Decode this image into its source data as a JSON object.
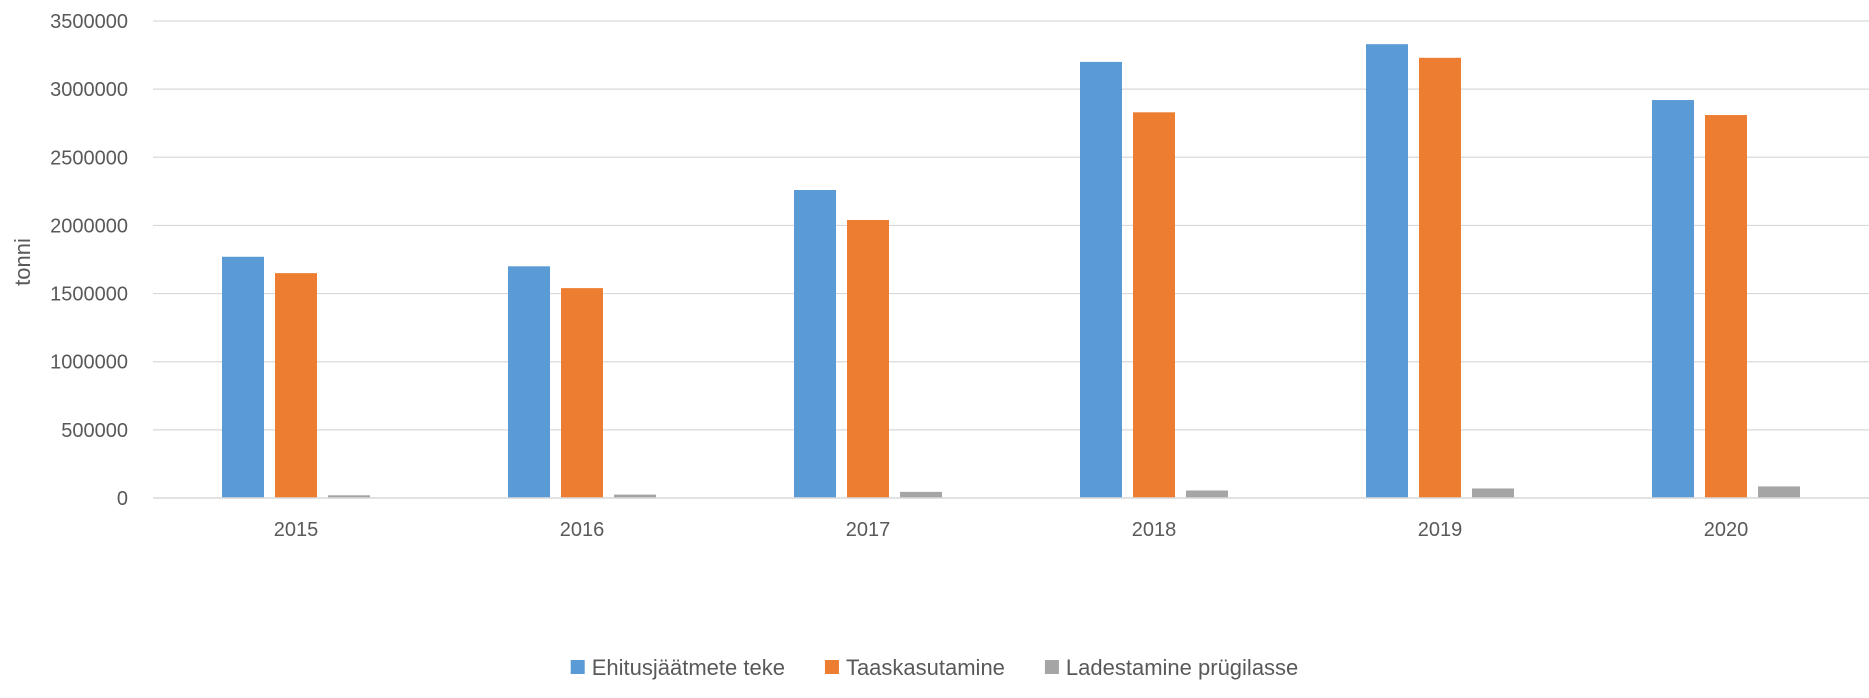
{
  "chart_data": {
    "type": "bar",
    "title": "",
    "xlabel": "",
    "ylabel": "tonni",
    "categories": [
      "2015",
      "2016",
      "2017",
      "2018",
      "2019",
      "2020"
    ],
    "ylim": [
      0,
      3500000
    ],
    "yticks": [
      "0",
      "500000",
      "1000000",
      "1500000",
      "2000000",
      "2500000",
      "3000000",
      "3500000"
    ],
    "grid": true,
    "legend_position": "bottom",
    "series": [
      {
        "name": "Ehitusjäätmete teke",
        "color": "#5B9BD5",
        "values": [
          1770000,
          1700000,
          2260000,
          3200000,
          3330000,
          2920000
        ]
      },
      {
        "name": "Taaskasutamine",
        "color": "#ED7D31",
        "values": [
          1650000,
          1540000,
          2040000,
          2830000,
          3230000,
          2810000
        ]
      },
      {
        "name": "Ladestamine prügilasse",
        "color": "#A5A5A5",
        "values": [
          20000,
          25000,
          45000,
          55000,
          70000,
          85000
        ]
      }
    ]
  }
}
